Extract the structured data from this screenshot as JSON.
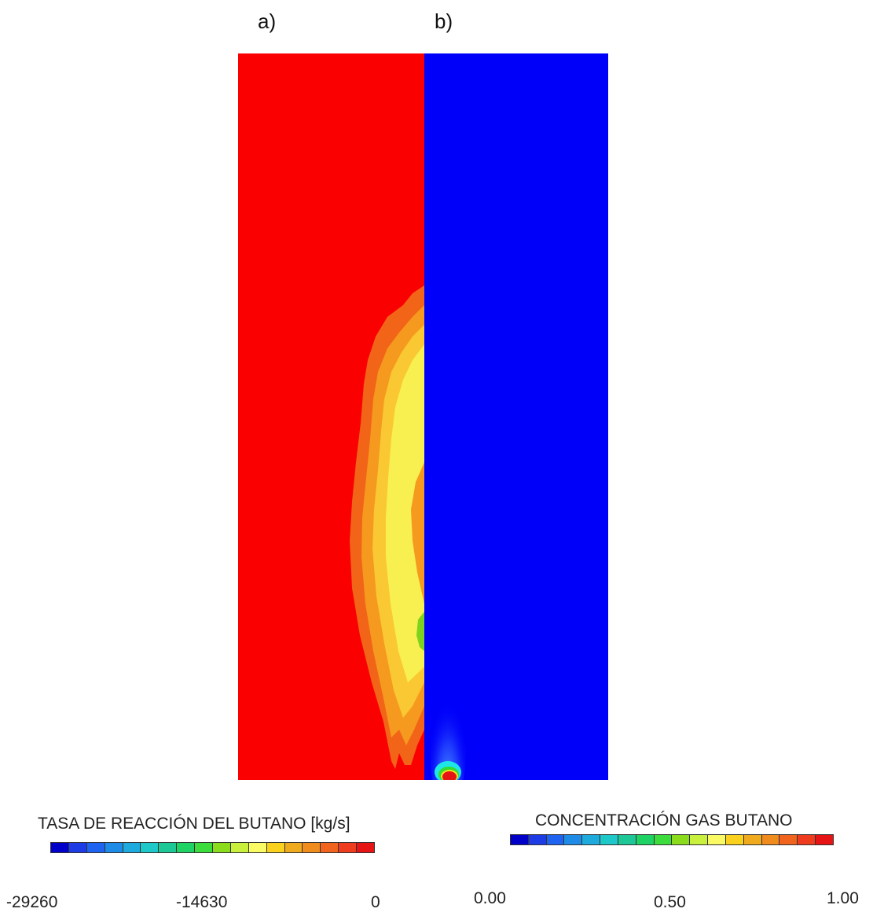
{
  "panels": {
    "a": {
      "label": "a)",
      "base_color": "#fa0000"
    },
    "b": {
      "label": "b)",
      "base_color": "#0000fa"
    }
  },
  "legend_a": {
    "title": "TASA DE REACCIÓN DEL BUTANO [kg/s]",
    "ticks": [
      "-29260",
      "-14630",
      "0"
    ]
  },
  "legend_b": {
    "title": "CONCENTRACIÓN GAS BUTANO",
    "ticks": [
      "0.00",
      "0.50",
      "1.00"
    ]
  },
  "colormap": [
    "#0000c8",
    "#1e3ce6",
    "#1e64f0",
    "#1e8ce6",
    "#1eaadc",
    "#1ec8c8",
    "#1ec896",
    "#1ed264",
    "#3cdc3c",
    "#8cdc1e",
    "#c8f03c",
    "#fafa64",
    "#fad21e",
    "#f0aa1e",
    "#f08c1e",
    "#f0641e",
    "#f03c1e",
    "#e61414"
  ]
}
